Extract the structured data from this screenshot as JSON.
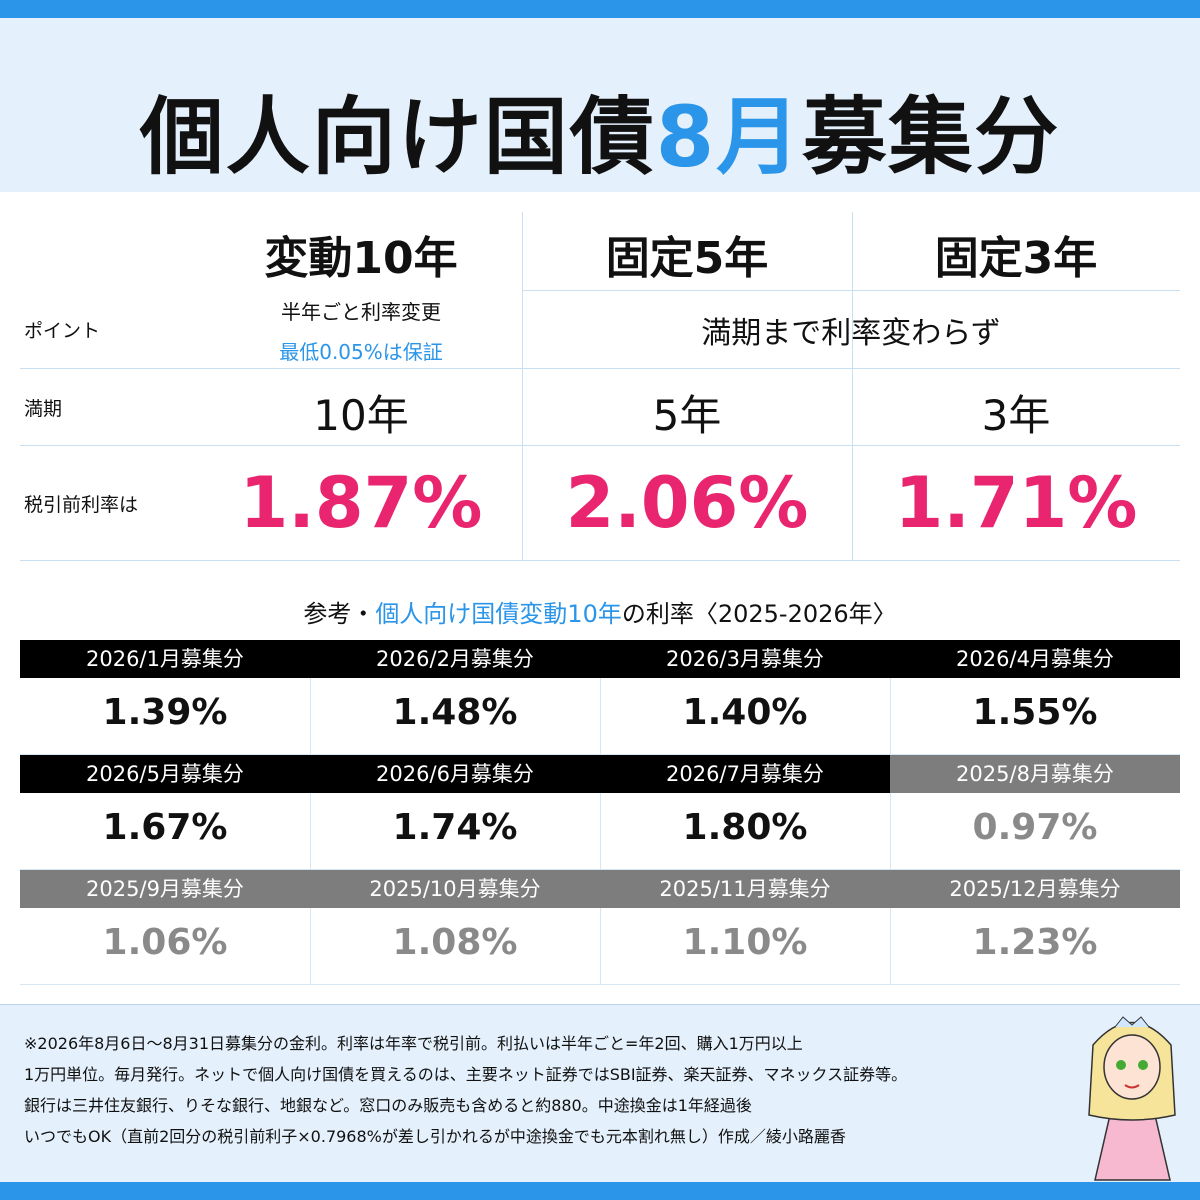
{
  "header": {
    "title": {
      "part1": "個人向け国債",
      "month": "8月",
      "part2": "募集分"
    }
  },
  "main": {
    "columns": [
      "変動10年",
      "固定5年",
      "固定3年"
    ],
    "point": {
      "label": "ポイント",
      "floating": [
        "半年ごと利率変更",
        "最低0.05%は保証"
      ],
      "fixed": "満期まで利率変わらず"
    },
    "maturity": {
      "label": "満期",
      "values": [
        "10年",
        "5年",
        "3年"
      ]
    },
    "rate": {
      "label": "税引前利率は",
      "values": [
        "1.87%",
        "2.06%",
        "1.71%"
      ]
    }
  },
  "reference": {
    "title": {
      "prefix": "参考・",
      "highlight": "個人向け国債変動10年",
      "suffix": "の利率〈2025-2026年〉"
    },
    "current": [
      {
        "label": "2026/1月募集分",
        "rate": "1.39%"
      },
      {
        "label": "2026/2月募集分",
        "rate": "1.48%"
      },
      {
        "label": "2026/3月募集分",
        "rate": "1.40%"
      },
      {
        "label": "2026/4月募集分",
        "rate": "1.55%"
      },
      {
        "label": "2026/5月募集分",
        "rate": "1.67%"
      },
      {
        "label": "2026/6月募集分",
        "rate": "1.74%"
      },
      {
        "label": "2026/7月募集分",
        "rate": "1.80%"
      }
    ],
    "past": [
      {
        "label": "2025/8月募集分",
        "rate": "0.97%"
      },
      {
        "label": "2025/9月募集分",
        "rate": "1.06%"
      },
      {
        "label": "2025/10月募集分",
        "rate": "1.08%"
      },
      {
        "label": "2025/11月募集分",
        "rate": "1.10%"
      },
      {
        "label": "2025/12月募集分",
        "rate": "1.23%"
      }
    ]
  },
  "footer": {
    "lines": [
      "※2026年8月6日～8月31日募集分の金利。利率は年率で税引前。利払いは半年ごと=年2回、購入1万円以上",
      "1万円単位。毎月発行。ネットで個人向け国債を買えるのは、主要ネット証券ではSBI証券、楽天証券、マネックス証券等。",
      "銀行は三井住友銀行、りそな銀行、地銀など。窓口のみ販売も含めると約880。中途換金は1年経過後",
      "いつでもOK（直前2回分の税引前利子×0.7968%が差し引かれるが中途換金でも元本割れ無し）作成／綾小路麗香"
    ]
  }
}
